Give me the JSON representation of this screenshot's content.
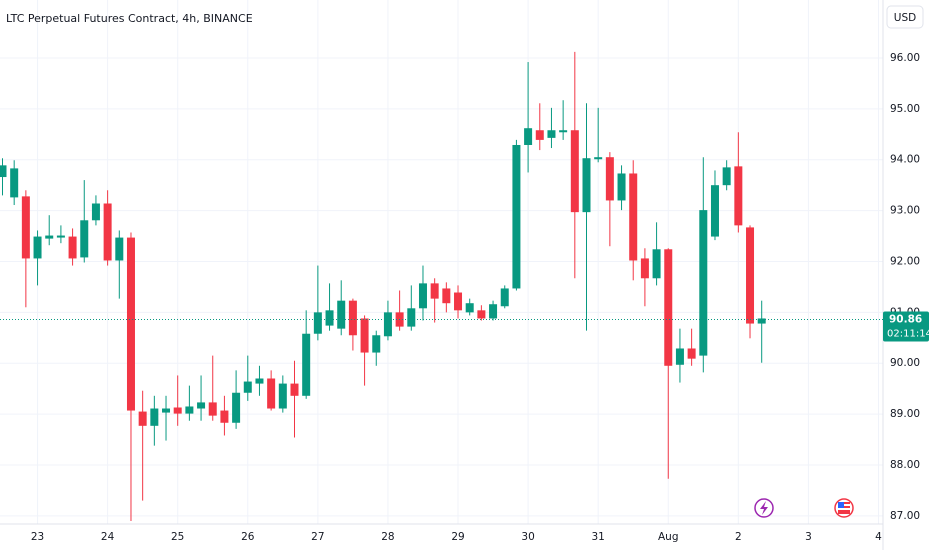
{
  "chart_data": {
    "type": "candlestick",
    "title": "LTC Perpetual Futures Contract, 4h, BINANCE",
    "currency": "USD",
    "up_color": "#089981",
    "down_color": "#f23645",
    "grid": true,
    "categories": [
      null,
      null,
      null,
      "23",
      null,
      null,
      null,
      null,
      null,
      "24",
      null,
      null,
      null,
      null,
      null,
      "25",
      null,
      null,
      null,
      null,
      null,
      "26",
      null,
      null,
      null,
      null,
      null,
      "27",
      null,
      null,
      null,
      null,
      null,
      "28",
      null,
      null,
      null,
      null,
      null,
      "29",
      null,
      null,
      null,
      null,
      null,
      "30",
      null,
      null,
      null,
      null,
      null,
      "31",
      null,
      null,
      null,
      null,
      null,
      "Aug",
      null,
      null,
      null,
      null,
      null,
      "2",
      null,
      null,
      null,
      null,
      null,
      "3",
      null,
      null,
      null,
      null,
      null,
      "4"
    ],
    "open": [
      93.66,
      93.26,
      93.28,
      92.06,
      92.45,
      92.47,
      92.49,
      92.08,
      92.81,
      93.14,
      92.02,
      92.47,
      89.05,
      88.77,
      89.03,
      89.13,
      89.01,
      89.11,
      89.23,
      89.07,
      88.83,
      89.42,
      89.6,
      89.7,
      89.11,
      89.6,
      89.36,
      90.58,
      90.74,
      90.68,
      91.23,
      90.88,
      90.21,
      90.53,
      91.0,
      90.72,
      91.08,
      91.57,
      91.47,
      91.39,
      91.0,
      91.04,
      90.88,
      91.12,
      91.47,
      94.29,
      94.58,
      94.43,
      94.54,
      94.58,
      92.97,
      94.01,
      94.05,
      93.2,
      93.73,
      92.06,
      91.67,
      92.24,
      89.97,
      90.29,
      90.15,
      92.49,
      93.5,
      93.87,
      92.67,
      90.78,
      null,
      null,
      null,
      null,
      null,
      null,
      null,
      null,
      null,
      null
    ],
    "high": [
      94.03,
      93.99,
      93.4,
      92.61,
      92.91,
      92.71,
      92.65,
      93.6,
      93.3,
      93.4,
      92.61,
      92.57,
      89.46,
      89.36,
      89.36,
      89.76,
      89.56,
      89.76,
      90.15,
      89.36,
      89.86,
      90.15,
      89.95,
      89.86,
      89.76,
      90.05,
      91.04,
      91.92,
      91.57,
      91.63,
      91.27,
      90.94,
      90.64,
      91.23,
      91.43,
      91.53,
      91.92,
      91.67,
      91.59,
      91.53,
      91.27,
      91.14,
      91.23,
      91.53,
      94.39,
      95.92,
      95.11,
      95.02,
      95.17,
      96.12,
      95.11,
      95.02,
      94.15,
      93.89,
      93.99,
      92.26,
      92.77,
      92.26,
      90.68,
      90.68,
      94.05,
      93.79,
      93.99,
      94.54,
      92.71,
      91.23,
      null,
      null,
      null,
      null,
      null,
      null,
      null,
      null,
      null,
      null
    ],
    "low": [
      93.3,
      93.11,
      91.1,
      91.53,
      92.32,
      92.36,
      91.92,
      91.98,
      92.71,
      91.92,
      91.27,
      86.9,
      87.3,
      88.38,
      88.48,
      88.77,
      88.87,
      88.87,
      88.87,
      88.58,
      88.71,
      89.26,
      89.36,
      89.07,
      89.03,
      88.54,
      89.3,
      90.45,
      90.64,
      90.55,
      90.25,
      89.56,
      89.95,
      90.45,
      90.64,
      90.64,
      90.84,
      90.8,
      91.0,
      90.88,
      90.94,
      90.84,
      90.84,
      91.08,
      91.43,
      93.75,
      94.19,
      94.23,
      94.39,
      91.67,
      90.64,
      93.95,
      92.3,
      93.01,
      91.63,
      91.12,
      91.53,
      87.73,
      89.62,
      89.95,
      89.82,
      92.42,
      93.4,
      92.57,
      90.49,
      90.01,
      null,
      null,
      null,
      null,
      null,
      null,
      null,
      null,
      null,
      null
    ],
    "close": [
      93.89,
      93.83,
      92.06,
      92.49,
      92.51,
      92.51,
      92.06,
      92.81,
      93.14,
      92.02,
      92.47,
      89.07,
      88.77,
      89.11,
      89.11,
      89.01,
      89.15,
      89.23,
      88.97,
      88.83,
      89.42,
      89.64,
      89.7,
      89.11,
      89.6,
      89.36,
      90.58,
      91.0,
      91.04,
      91.23,
      90.55,
      90.21,
      90.55,
      91.0,
      90.72,
      91.08,
      91.57,
      91.27,
      91.18,
      91.04,
      91.18,
      90.88,
      91.16,
      91.47,
      94.29,
      94.62,
      94.39,
      94.58,
      94.58,
      92.97,
      94.03,
      94.05,
      93.2,
      93.73,
      92.02,
      91.67,
      92.24,
      89.95,
      90.29,
      90.09,
      93.01,
      93.5,
      93.85,
      92.71,
      90.78,
      90.88,
      null,
      null,
      null,
      null,
      null,
      null,
      null,
      null,
      null,
      null
    ],
    "ylim": [
      86.84,
      97.14
    ],
    "yticks": [
      {
        "value": 87,
        "label": "87.00"
      },
      {
        "value": 88,
        "label": "88.00"
      },
      {
        "value": 89,
        "label": "89.00"
      },
      {
        "value": 90,
        "label": "90.00"
      },
      {
        "value": 91,
        "label": "91.00"
      },
      {
        "value": 92,
        "label": "92.00"
      },
      {
        "value": 93,
        "label": "93.00"
      },
      {
        "value": 94,
        "label": "94.00"
      },
      {
        "value": 95,
        "label": "95.00"
      },
      {
        "value": 96,
        "label": "96.00"
      }
    ],
    "last_price": 90.86,
    "countdown": "02:11:14"
  }
}
